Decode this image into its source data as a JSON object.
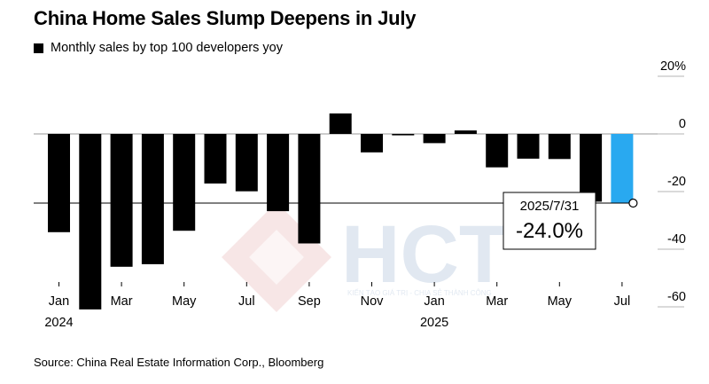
{
  "header": {
    "title": "China Home Sales Slump Deepens in July",
    "legend_label": "Monthly sales by top 100 developers yoy"
  },
  "footer": {
    "source": "Source: China Real Estate Information Corp., Bloomberg"
  },
  "watermark": {
    "brand": "HCT",
    "tagline": "KIẾN TẠO GIÁ TRỊ - CHIA SẺ THÀNH CÔNG"
  },
  "chart_data": {
    "type": "bar",
    "title": "China Home Sales Slump Deepens in July",
    "series_label": "Monthly sales by top 100 developers yoy",
    "categories": [
      "2024-01",
      "2024-02",
      "2024-03",
      "2024-04",
      "2024-05",
      "2024-06",
      "2024-07",
      "2024-08",
      "2024-09",
      "2024-10",
      "2024-11",
      "2024-12",
      "2025-01",
      "2025-02",
      "2025-03",
      "2025-04",
      "2025-05",
      "2025-06",
      "2025-07"
    ],
    "values": [
      -34.1,
      -60.9,
      -46.1,
      -45.2,
      -33.6,
      -17.2,
      -19.9,
      -26.8,
      -38.0,
      7.1,
      -6.4,
      -0.5,
      -3.2,
      1.2,
      -11.6,
      -8.6,
      -8.7,
      -23.5,
      -24.0
    ],
    "highlight_index": 18,
    "colors": {
      "bar": "#000000",
      "highlight": "#29a9f0",
      "reference_line": "#000000"
    },
    "ylim": [
      -62,
      20
    ],
    "y_ticks": [
      20,
      0,
      -20,
      -40,
      -60
    ],
    "y_tick_labels": [
      "20%",
      "0",
      "-20",
      "-40",
      "-60"
    ],
    "x_tick_labels": [
      {
        "index": 0,
        "label": "Jan",
        "year": "2024"
      },
      {
        "index": 2,
        "label": "Mar"
      },
      {
        "index": 4,
        "label": "May"
      },
      {
        "index": 6,
        "label": "Jul"
      },
      {
        "index": 8,
        "label": "Sep"
      },
      {
        "index": 10,
        "label": "Nov"
      },
      {
        "index": 12,
        "label": "Jan",
        "year": "2025"
      },
      {
        "index": 14,
        "label": "Mar"
      },
      {
        "index": 16,
        "label": "May"
      },
      {
        "index": 18,
        "label": "Jul"
      }
    ],
    "annotation": {
      "index": 18,
      "date": "2025/7/31",
      "value_label": "-24.0%"
    },
    "grid": true,
    "legend_position": "top-left"
  }
}
